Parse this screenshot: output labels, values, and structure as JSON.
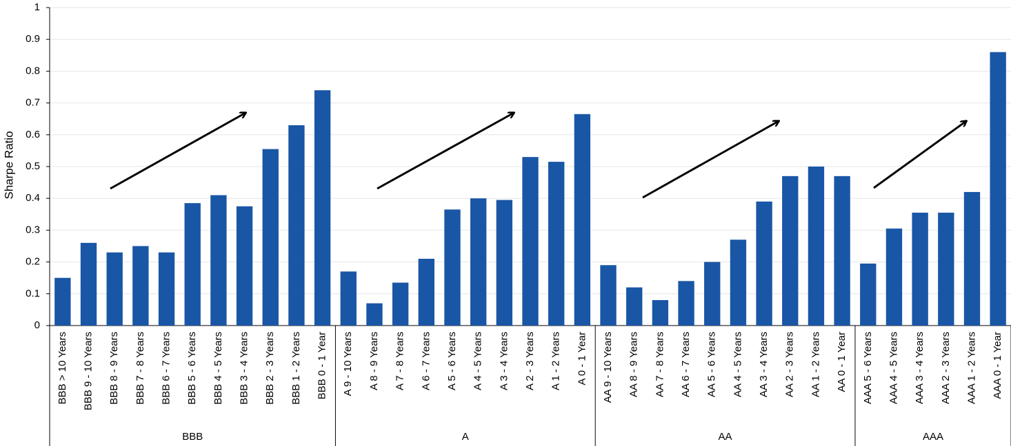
{
  "chart_data": {
    "type": "bar",
    "y_label": "Sharpe Ratio",
    "color": "#1a56a6",
    "ylim": [
      0,
      1
    ],
    "yticks": [
      0,
      0.1,
      0.2,
      0.3,
      0.4,
      0.5,
      0.6,
      0.7,
      0.8,
      0.9,
      1
    ],
    "grid": true,
    "groups": [
      {
        "label": "BBB",
        "categories": [
          "BBB > 10 Years",
          "BBB 9 - 10 Years",
          "BBB 8 - 9 Years",
          "BBB 7 - 8 Years",
          "BBB 6 - 7 Years",
          "BBB 5 - 6 Years",
          "BBB 4 - 5 Years",
          "BBB 3 - 4 Years",
          "BBB 2 - 3 Years",
          "BBB 1 - 2 Years",
          "BBB 0 - 1 Year"
        ],
        "values": [
          0.15,
          0.26,
          0.23,
          0.25,
          0.23,
          0.385,
          0.41,
          0.375,
          0.555,
          0.63,
          0.74
        ]
      },
      {
        "label": "A",
        "categories": [
          "A 9 - 10 Years",
          "A 8 - 9 Years",
          "A 7 - 8 Years",
          "A 6 - 7 Years",
          "A 5 - 6 Years",
          "A 4 - 5 Years",
          "A 3 - 4 Years",
          "A 2 - 3 Years",
          "A 1 - 2 Years",
          "A 0 - 1 Year"
        ],
        "values": [
          0.17,
          0.07,
          0.135,
          0.21,
          0.365,
          0.4,
          0.395,
          0.53,
          0.515,
          0.665
        ]
      },
      {
        "label": "AA",
        "categories": [
          "AA 9 - 10 Years",
          "AA 8 - 9 Years",
          "AA 7 - 8 Years",
          "AA 6 - 7 Years",
          "AA 5 - 6 Years",
          "AA 4 - 5 Years",
          "AA 3 - 4 Years",
          "AA 2 - 3 Years",
          "AA 1 - 2 Years",
          "AA 0 - 1 Year"
        ],
        "values": [
          0.19,
          0.12,
          0.08,
          0.14,
          0.2,
          0.27,
          0.39,
          0.47,
          0.5,
          0.47
        ]
      },
      {
        "label": "AAA",
        "categories": [
          "AAA 5 - 6 Years",
          "AAA 4 - 5 Years",
          "AAA 3 - 4 Years",
          "AAA 2 - 3 Years",
          "AAA 1 - 2 Years",
          "AAA 0 - 1 Year"
        ],
        "values": [
          0.195,
          0.305,
          0.355,
          0.355,
          0.42,
          0.86
        ]
      }
    ]
  }
}
